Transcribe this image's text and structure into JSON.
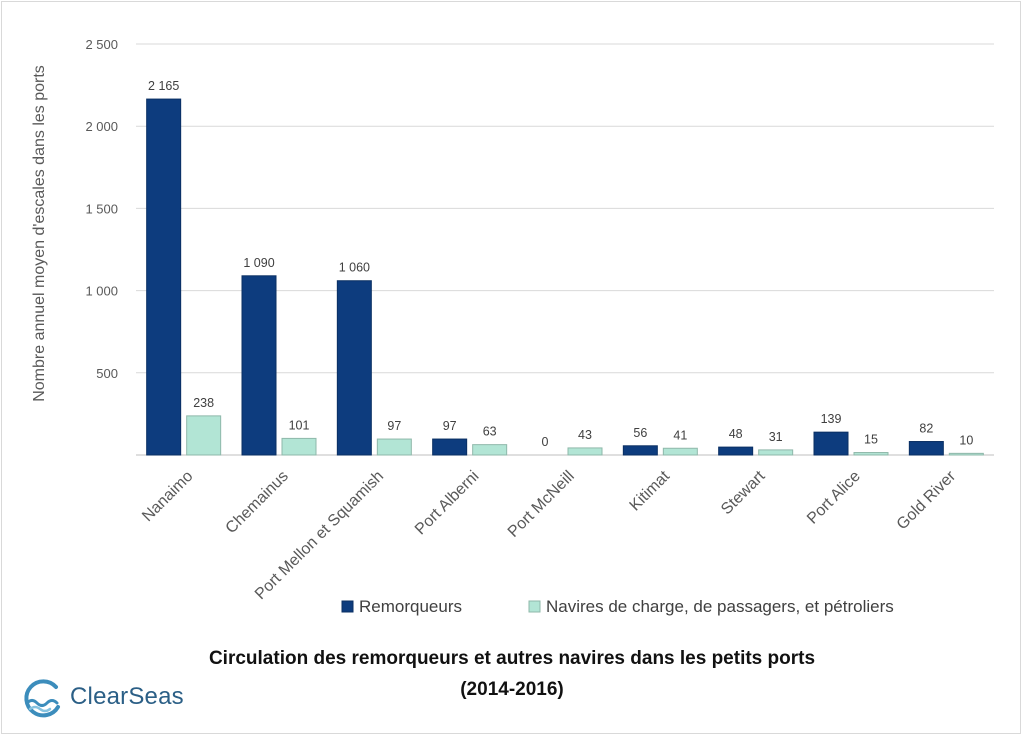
{
  "chart_data": {
    "type": "bar",
    "title": "Circulation des remorqueurs et autres navires dans les petits ports",
    "subtitle": "(2014-2016)",
    "ylabel": "Nombre annuel moyen d'escales dans les ports",
    "xlabel": "",
    "ylim": [
      0,
      2500
    ],
    "yticks": [
      500,
      1000,
      1500,
      2000,
      2500
    ],
    "ytick_labels": [
      "500",
      "1 000",
      "1 500",
      "2 000",
      "2 500"
    ],
    "grid": true,
    "legend_position": "bottom-right",
    "categories": [
      "Nanaimo",
      "Chemainus",
      "Port Mellon et Squamish",
      "Port Alberni",
      "Port McNeill",
      "Kitimat",
      "Stewart",
      "Port Alice",
      "Gold River"
    ],
    "series": [
      {
        "name": "Remorqueurs",
        "color": "#0d3c7e",
        "values": [
          2165,
          1090,
          1060,
          97,
          0,
          56,
          48,
          139,
          82
        ],
        "labels": [
          "2 165",
          "1 090",
          "1 060",
          "97",
          "0",
          "56",
          "48",
          "139",
          "82"
        ]
      },
      {
        "name": "Navires de charge, de passagers, et pétroliers",
        "color": "#b2e5d5",
        "values": [
          238,
          101,
          97,
          63,
          43,
          41,
          31,
          15,
          10
        ],
        "labels": [
          "238",
          "101",
          "97",
          "63",
          "43",
          "41",
          "31",
          "15",
          "10"
        ]
      }
    ]
  },
  "logo": {
    "text": "ClearSeas",
    "color": "#2b5f86",
    "wave_color": "#3c8dbc"
  }
}
